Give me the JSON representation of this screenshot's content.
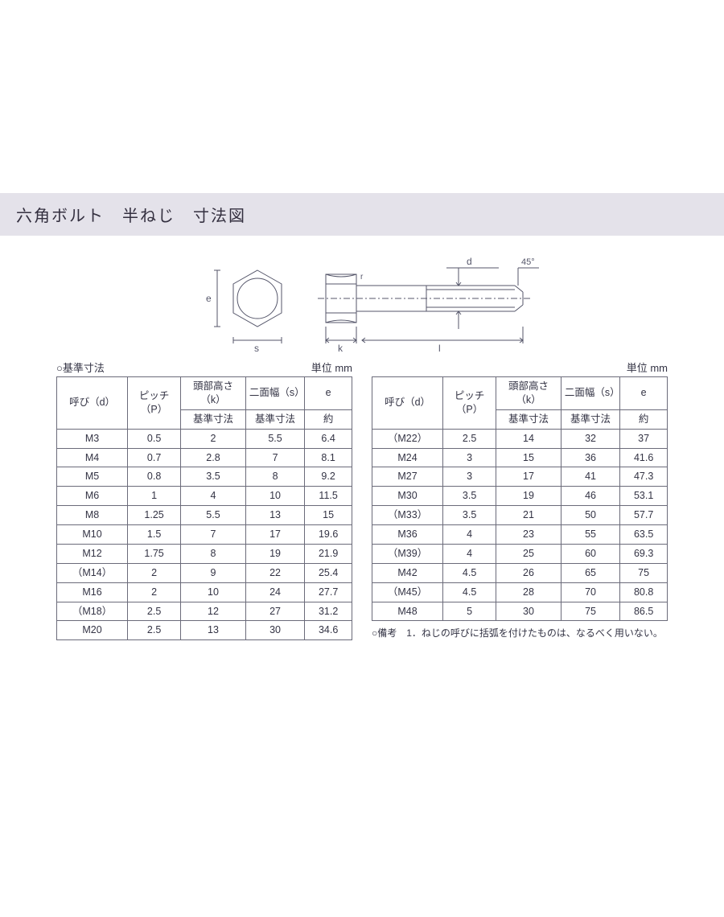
{
  "title": "六角ボルト　半ねじ　寸法図",
  "unit_label": "単位 mm",
  "caption_left": "○基準寸法",
  "diagram": {
    "annot_e": "e",
    "annot_s": "s",
    "annot_k": "k",
    "annot_l": "l",
    "annot_d": "d",
    "annot_r": "r",
    "annot_45": "45°",
    "stroke": "#55566a",
    "fill": "#ffffff"
  },
  "headers": {
    "h_yobi": "呼び（d）",
    "h_pitch": "ピッチ\n（P）",
    "h_head": "頭部高さ（k）",
    "h_width": "二面幅（s）",
    "h_e": "e",
    "sub_std": "基準寸法",
    "sub_approx": "約"
  },
  "rows_left": [
    [
      "M3",
      "0.5",
      "2",
      "5.5",
      "6.4"
    ],
    [
      "M4",
      "0.7",
      "2.8",
      "7",
      "8.1"
    ],
    [
      "M5",
      "0.8",
      "3.5",
      "8",
      "9.2"
    ],
    [
      "M6",
      "1",
      "4",
      "10",
      "11.5"
    ],
    [
      "M8",
      "1.25",
      "5.5",
      "13",
      "15"
    ],
    [
      "M10",
      "1.5",
      "7",
      "17",
      "19.6"
    ],
    [
      "M12",
      "1.75",
      "8",
      "19",
      "21.9"
    ],
    [
      "（M14）",
      "2",
      "9",
      "22",
      "25.4"
    ],
    [
      "M16",
      "2",
      "10",
      "24",
      "27.7"
    ],
    [
      "（M18）",
      "2.5",
      "12",
      "27",
      "31.2"
    ],
    [
      "M20",
      "2.5",
      "13",
      "30",
      "34.6"
    ]
  ],
  "rows_right": [
    [
      "（M22）",
      "2.5",
      "14",
      "32",
      "37"
    ],
    [
      "M24",
      "3",
      "15",
      "36",
      "41.6"
    ],
    [
      "M27",
      "3",
      "17",
      "41",
      "47.3"
    ],
    [
      "M30",
      "3.5",
      "19",
      "46",
      "53.1"
    ],
    [
      "（M33）",
      "3.5",
      "21",
      "50",
      "57.7"
    ],
    [
      "M36",
      "4",
      "23",
      "55",
      "63.5"
    ],
    [
      "（M39）",
      "4",
      "25",
      "60",
      "69.3"
    ],
    [
      "M42",
      "4.5",
      "26",
      "65",
      "75"
    ],
    [
      "（M45）",
      "4.5",
      "28",
      "70",
      "80.8"
    ],
    [
      "M48",
      "5",
      "30",
      "75",
      "86.5"
    ]
  ],
  "footnote": "○備考　1．ねじの呼びに括弧を付けたものは、なるべく用いない。"
}
